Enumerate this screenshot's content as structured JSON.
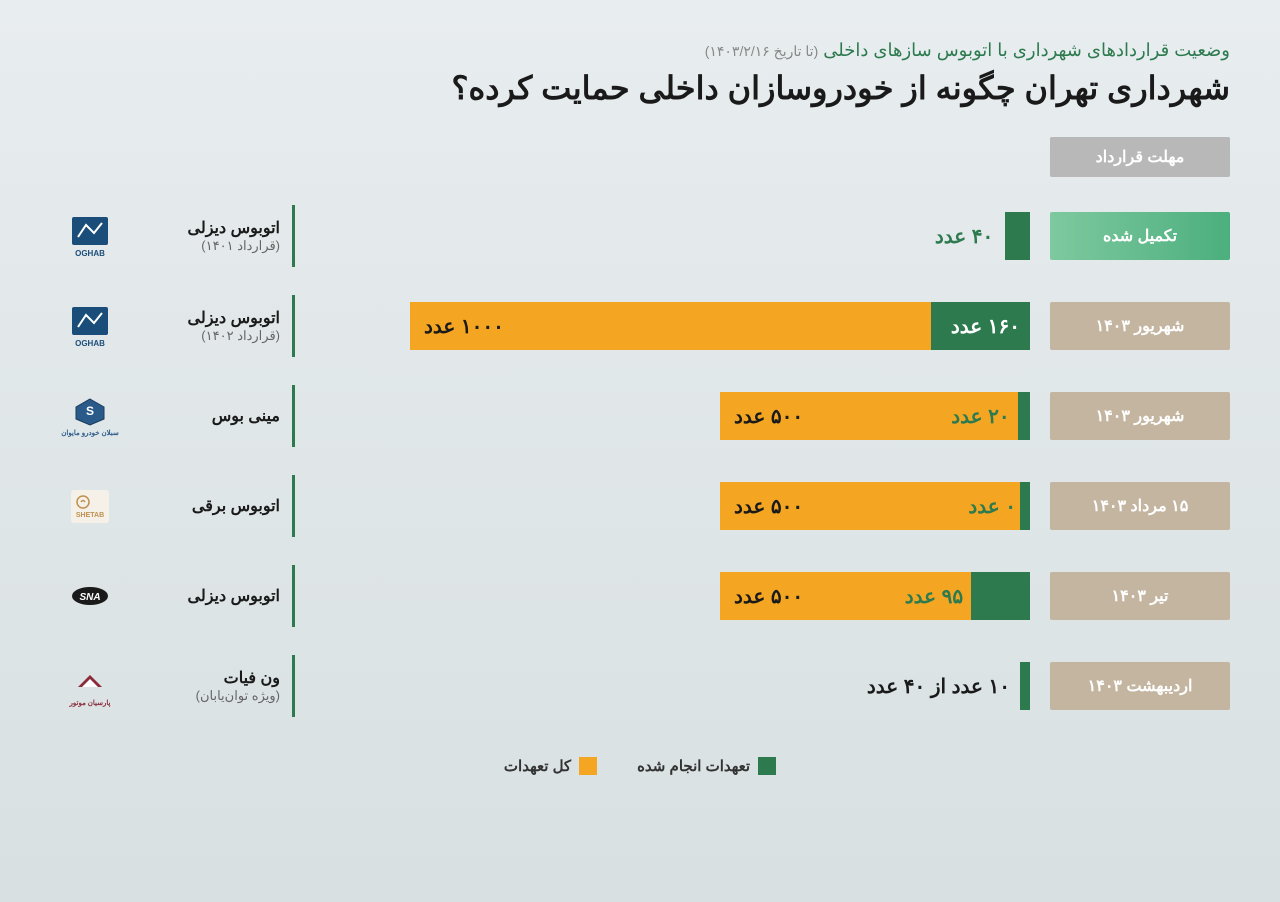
{
  "header": {
    "subtitle": "وضعیت قراردادهای شهرداری با اتوبوس سازهای داخلی",
    "subtitle_date": "(تا تاریخ ۱۴۰۳/۲/۱۶)",
    "title": "شهرداری تهران چگونه از خودروسازان داخلی حمایت کرده؟"
  },
  "deadline_header": "مهلت قرارداد",
  "chart": {
    "max_value": 1000,
    "bar_max_width": 620,
    "colors": {
      "completed": "#2d7a4f",
      "total": "#f4a623",
      "deadline_completed_start": "#4caf7d",
      "deadline_completed_end": "#7ec99f",
      "deadline_pending": "#c4b5a0",
      "divider": "#2d7a4f",
      "text_dark": "#1a1a1a",
      "text_light": "#ffffff"
    },
    "rows": [
      {
        "deadline": "تکمیل شده",
        "deadline_type": "completed",
        "completed": 40,
        "total": 40,
        "completed_label": "۴۰ عدد",
        "total_label": "",
        "show_total_bar": false,
        "info_title": "اتوبوس دیزلی",
        "info_sub": "(قرارداد ۱۴۰۱)",
        "logo": "OGHAB",
        "logo_type": "oghab"
      },
      {
        "deadline": "شهریور ۱۴۰۳",
        "deadline_type": "pending",
        "completed": 160,
        "total": 1000,
        "completed_label": "۱۶۰ عدد",
        "total_label": "۱۰۰۰ عدد",
        "show_total_bar": true,
        "info_title": "اتوبوس دیزلی",
        "info_sub": "(قرارداد ۱۴۰۲)",
        "logo": "OGHAB",
        "logo_type": "oghab"
      },
      {
        "deadline": "شهریور ۱۴۰۳",
        "deadline_type": "pending",
        "completed": 20,
        "total": 500,
        "completed_label": "۲۰ عدد",
        "total_label": "۵۰۰ عدد",
        "show_total_bar": true,
        "info_title": "مینی بوس",
        "info_sub": "",
        "logo": "سبلان خودرو مایوان",
        "logo_type": "sabalan"
      },
      {
        "deadline": "۱۵ مرداد ۱۴۰۳",
        "deadline_type": "pending",
        "completed": 0,
        "total": 500,
        "completed_label": "۰ عدد",
        "total_label": "۵۰۰ عدد",
        "show_total_bar": true,
        "info_title": "اتوبوس برقی",
        "info_sub": "",
        "logo": "SHETAB",
        "logo_type": "shetab"
      },
      {
        "deadline": "تیر ۱۴۰۳",
        "deadline_type": "pending",
        "completed": 95,
        "total": 500,
        "completed_label": "۹۵ عدد",
        "total_label": "۵۰۰ عدد",
        "show_total_bar": true,
        "info_title": "اتوبوس دیزلی",
        "info_sub": "",
        "logo": "SNA",
        "logo_type": "sna"
      },
      {
        "deadline": "اردیبهشت ۱۴۰۳",
        "deadline_type": "pending",
        "completed": 10,
        "total": 40,
        "completed_label": "",
        "total_label": "۱۰ عدد از ۴۰ عدد",
        "show_total_bar": false,
        "outside_label": true,
        "info_title": "ون فیات",
        "info_sub": "(ویژه توان‌یابان)",
        "logo": "پارسیان موتور",
        "logo_type": "parsian"
      }
    ]
  },
  "legend": {
    "completed": "تعهدات انجام شده",
    "total": "کل تعهدات"
  }
}
